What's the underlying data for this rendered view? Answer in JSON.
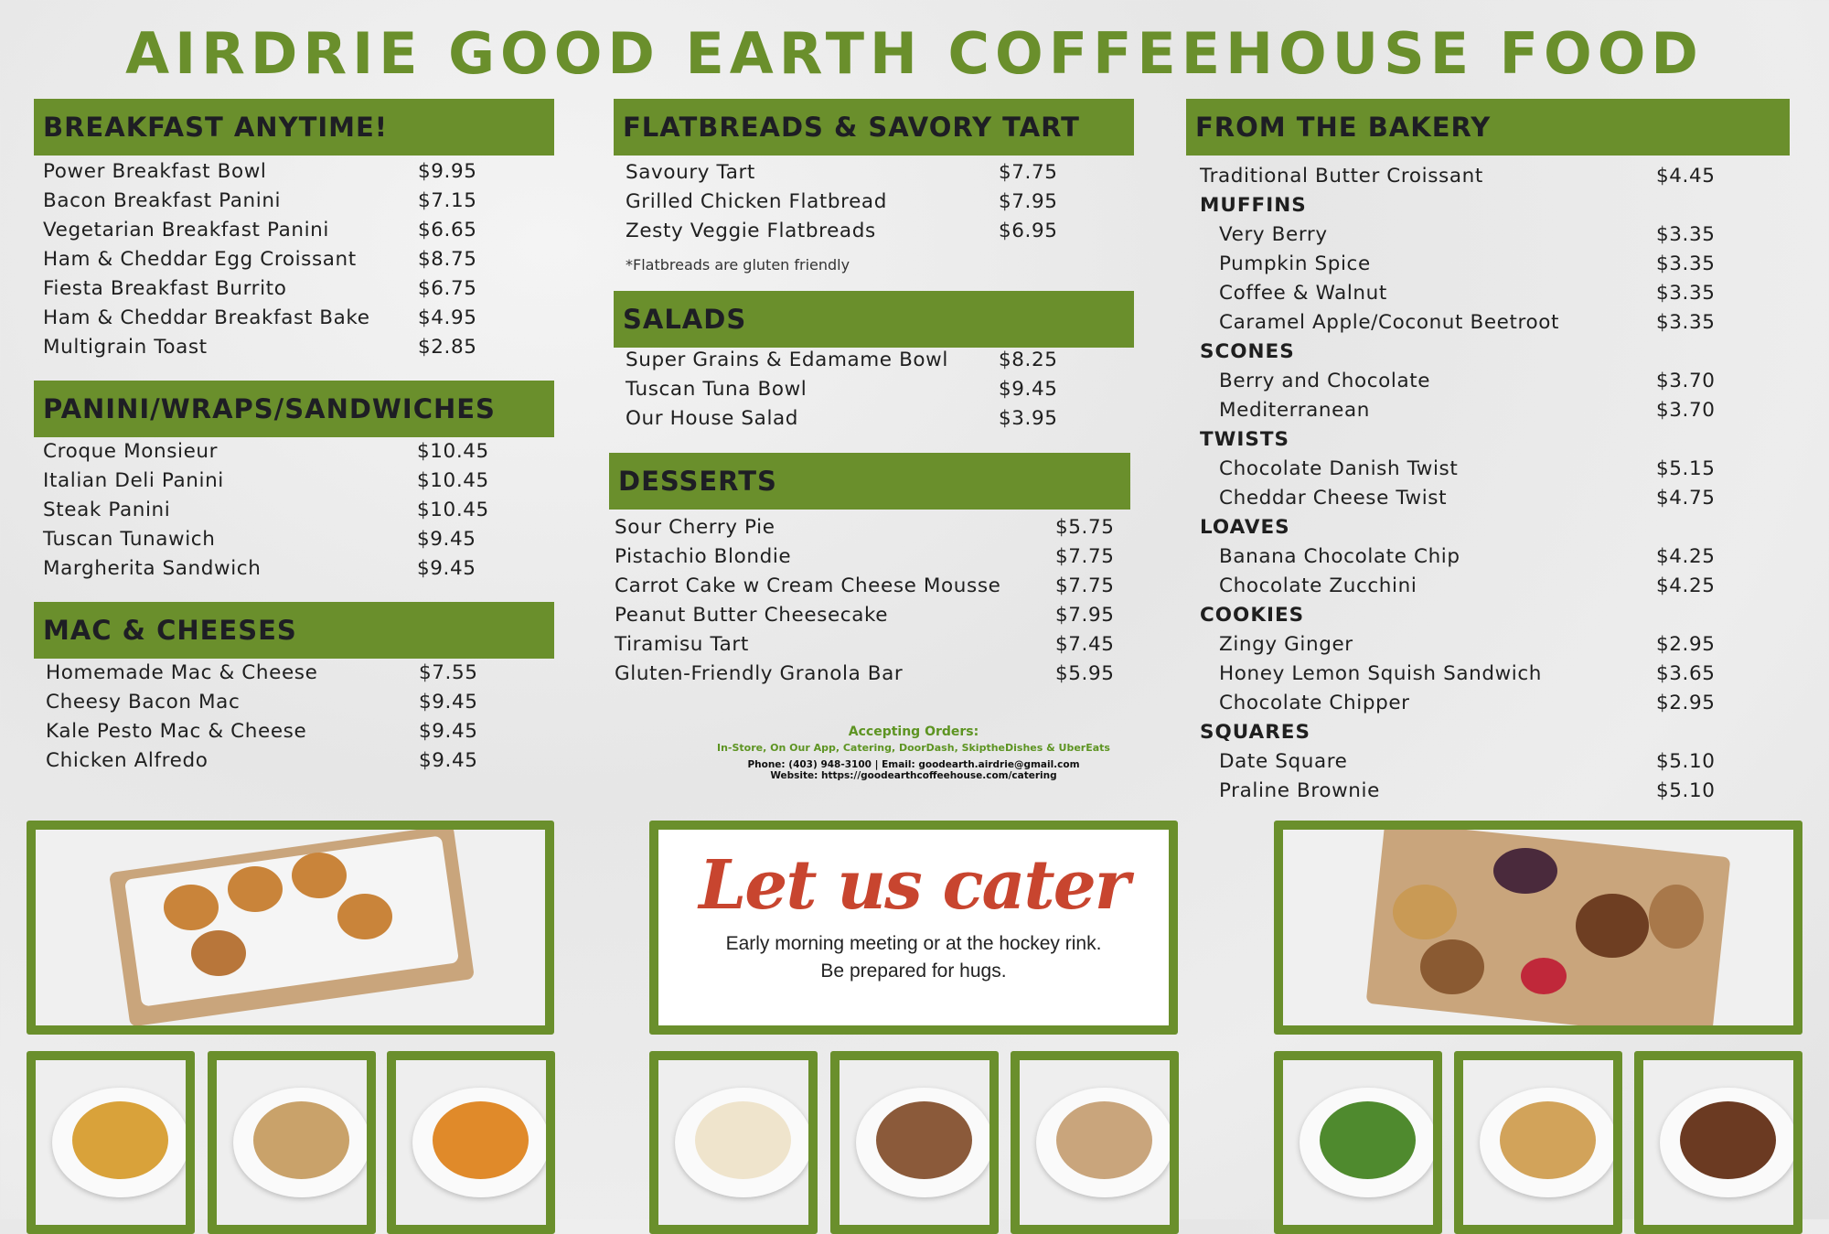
{
  "title": "AIRDRIE GOOD EARTH COFFEEHOUSE FOOD",
  "colors": {
    "brand_green": "#6a8f2c",
    "cater_red": "#c8452f"
  },
  "sections": {
    "breakfast": {
      "title": "BREAKFAST ANYTIME!",
      "items": [
        {
          "name": "Power Breakfast Bowl",
          "price": "$9.95"
        },
        {
          "name": "Bacon Breakfast Panini",
          "price": "$7.15"
        },
        {
          "name": "Vegetarian Breakfast Panini",
          "price": "$6.65"
        },
        {
          "name": "Ham & Cheddar Egg Croissant",
          "price": "$8.75"
        },
        {
          "name": "Fiesta Breakfast Burrito",
          "price": "$6.75"
        },
        {
          "name": "Ham & Cheddar Breakfast Bake",
          "price": "$4.95"
        },
        {
          "name": "Multigrain Toast",
          "price": "$2.85"
        }
      ]
    },
    "panini": {
      "title": "PANINI/WRAPS/SANDWICHES",
      "items": [
        {
          "name": "Croque Monsieur",
          "price": "$10.45"
        },
        {
          "name": "Italian Deli Panini",
          "price": "$10.45"
        },
        {
          "name": "Steak Panini",
          "price": "$10.45"
        },
        {
          "name": "Tuscan Tunawich",
          "price": "$9.45"
        },
        {
          "name": "Margherita Sandwich",
          "price": "$9.45"
        }
      ]
    },
    "mac": {
      "title": "MAC & CHEESES",
      "items": [
        {
          "name": "Homemade Mac & Cheese",
          "price": "$7.55"
        },
        {
          "name": "Cheesy Bacon Mac",
          "price": "$9.45"
        },
        {
          "name": "Kale Pesto Mac & Cheese",
          "price": "$9.45"
        },
        {
          "name": "Chicken Alfredo",
          "price": "$9.45"
        }
      ]
    },
    "flatbreads": {
      "title": "FLATBREADS & SAVORY TART",
      "items": [
        {
          "name": "Savoury Tart",
          "price": "$7.75"
        },
        {
          "name": "Grilled Chicken Flatbread",
          "price": "$7.95"
        },
        {
          "name": "Zesty Veggie Flatbreads",
          "price": "$6.95"
        }
      ],
      "note": "*Flatbreads are gluten friendly"
    },
    "salads": {
      "title": "SALADS",
      "items": [
        {
          "name": "Super Grains & Edamame Bowl",
          "price": "$8.25"
        },
        {
          "name": "Tuscan Tuna Bowl",
          "price": "$9.45"
        },
        {
          "name": "Our House Salad",
          "price": "$3.95"
        }
      ]
    },
    "desserts": {
      "title": "DESSERTS",
      "items": [
        {
          "name": "Sour Cherry Pie",
          "price": "$5.75"
        },
        {
          "name": "Pistachio Blondie",
          "price": "$7.75"
        },
        {
          "name": "Carrot Cake w Cream Cheese Mousse",
          "price": "$7.75"
        },
        {
          "name": "Peanut Butter Cheesecake",
          "price": "$7.95"
        },
        {
          "name": "Tiramisu Tart",
          "price": "$7.45"
        },
        {
          "name": "Gluten-Friendly Granola Bar",
          "price": "$5.95"
        }
      ]
    },
    "bakery": {
      "title": "FROM THE BAKERY",
      "items": [
        {
          "name": "Traditional Butter Croissant",
          "price": "$4.45"
        },
        {
          "name": "MUFFINS",
          "sub": true
        },
        {
          "name": "Very Berry",
          "price": "$3.35",
          "indent": true
        },
        {
          "name": "Pumpkin Spice",
          "price": "$3.35",
          "indent": true
        },
        {
          "name": "Coffee & Walnut",
          "price": "$3.35",
          "indent": true
        },
        {
          "name": "Caramel Apple/Coconut Beetroot",
          "price": "$3.35",
          "indent": true
        },
        {
          "name": "SCONES",
          "sub": true
        },
        {
          "name": "Berry and Chocolate",
          "price": "$3.70",
          "indent": true
        },
        {
          "name": "Mediterranean",
          "price": "$3.70",
          "indent": true
        },
        {
          "name": "TWISTS",
          "sub": true
        },
        {
          "name": "Chocolate Danish Twist",
          "price": "$5.15",
          "indent": true
        },
        {
          "name": "Cheddar Cheese Twist",
          "price": "$4.75",
          "indent": true
        },
        {
          "name": "LOAVES",
          "sub": true
        },
        {
          "name": "Banana Chocolate Chip",
          "price": "$4.25",
          "indent": true
        },
        {
          "name": "Chocolate Zucchini",
          "price": "$4.25",
          "indent": true
        },
        {
          "name": "COOKIES",
          "sub": true
        },
        {
          "name": "Zingy Ginger",
          "price": "$2.95",
          "indent": true
        },
        {
          "name": "Honey Lemon Squish Sandwich",
          "price": "$3.65",
          "indent": true
        },
        {
          "name": "Chocolate Chipper",
          "price": "$2.95",
          "indent": true
        },
        {
          "name": "SQUARES",
          "sub": true
        },
        {
          "name": "Date Square",
          "price": "$5.10",
          "indent": true
        },
        {
          "name": "Praline Brownie",
          "price": "$5.10",
          "indent": true
        }
      ]
    }
  },
  "orders": {
    "heading": "Accepting Orders:",
    "channels": "In-Store, On Our App, Catering, DoorDash, SkiptheDishes & UberEats",
    "contact": "Phone: (403) 948-3100 | Email: goodearth.airdrie@gmail.com",
    "website": "Website: https://goodearthcoffeehouse.com/catering"
  },
  "cater": {
    "headline": "Let us cater",
    "line1": "Early morning meeting or at the hockey rink.",
    "line2": "Be prepared for hugs."
  }
}
